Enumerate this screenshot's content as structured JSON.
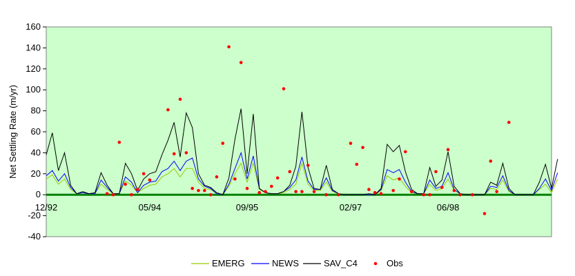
{
  "chart_data": {
    "type": "line",
    "title": "",
    "xlabel": "",
    "ylabel": "Net Settling Rate (m/yr)",
    "ylim": [
      -40,
      160
    ],
    "yticks": [
      -40,
      -20,
      0,
      20,
      40,
      60,
      80,
      100,
      120,
      140,
      160
    ],
    "xlim": [
      0,
      83
    ],
    "xticks": [
      {
        "x": 0,
        "label": "12/92"
      },
      {
        "x": 17,
        "label": "05/94"
      },
      {
        "x": 33,
        "label": "09/95"
      },
      {
        "x": 50,
        "label": "02/97"
      },
      {
        "x": 66,
        "label": "06/98"
      }
    ],
    "grid": false,
    "background": "#ccffcc",
    "zero_line_color": "#008000",
    "legend_position": "bottom",
    "series": [
      {
        "name": "EMERG",
        "style": "line",
        "color": "#99cc00",
        "values": [
          15,
          19,
          10,
          15,
          5,
          1,
          2,
          1,
          1,
          10,
          5,
          1,
          1,
          13,
          9,
          2,
          6,
          9,
          10,
          17,
          20,
          25,
          17,
          25,
          25,
          12,
          6,
          5,
          1,
          0,
          8,
          20,
          30,
          12,
          30,
          5,
          2,
          1,
          1,
          2,
          5,
          10,
          30,
          10,
          4,
          4,
          12,
          3,
          1,
          0,
          0,
          0,
          0,
          0,
          0,
          4,
          18,
          14,
          16,
          8,
          2,
          1,
          1,
          10,
          4,
          6,
          15,
          4,
          1,
          0,
          0,
          0,
          0,
          6,
          5,
          14,
          3,
          0,
          0,
          0,
          0,
          5,
          10,
          2,
          15
        ]
      },
      {
        "name": "NEWS",
        "style": "line",
        "color": "#0000ff",
        "values": [
          18,
          23,
          13,
          20,
          7,
          1,
          2,
          1,
          1,
          14,
          7,
          1,
          1,
          17,
          12,
          2,
          9,
          12,
          13,
          22,
          25,
          32,
          23,
          32,
          35,
          15,
          8,
          6,
          1,
          0,
          10,
          25,
          40,
          15,
          37,
          6,
          2,
          1,
          1,
          3,
          7,
          14,
          36,
          13,
          5,
          5,
          16,
          4,
          1,
          0,
          0,
          0,
          0,
          0,
          0,
          5,
          24,
          21,
          24,
          12,
          3,
          1,
          1,
          14,
          6,
          8,
          21,
          5,
          1,
          0,
          0,
          0,
          0,
          8,
          7,
          18,
          4,
          0,
          0,
          0,
          0,
          6,
          15,
          4,
          21
        ]
      },
      {
        "name": "SAV_C4",
        "style": "line",
        "color": "#000000",
        "values": [
          38,
          59,
          23,
          40,
          9,
          1,
          3,
          1,
          2,
          21,
          9,
          1,
          1,
          30,
          20,
          4,
          15,
          20,
          22,
          38,
          52,
          69,
          36,
          78,
          64,
          20,
          9,
          7,
          2,
          0,
          16,
          53,
          82,
          20,
          77,
          6,
          2,
          1,
          1,
          3,
          9,
          27,
          79,
          26,
          6,
          5,
          28,
          5,
          1,
          0,
          0,
          0,
          0,
          1,
          0,
          6,
          48,
          41,
          47,
          22,
          5,
          1,
          1,
          26,
          8,
          14,
          41,
          8,
          1,
          0,
          0,
          0,
          0,
          12,
          9,
          30,
          6,
          0,
          0,
          0,
          0,
          12,
          29,
          6,
          34
        ]
      },
      {
        "name": "Obs",
        "style": "scatter",
        "color": "#ff0000",
        "points": [
          [
            10,
            1
          ],
          [
            11,
            0
          ],
          [
            12,
            50
          ],
          [
            13,
            10
          ],
          [
            14,
            0
          ],
          [
            15,
            5
          ],
          [
            16,
            20
          ],
          [
            17,
            14
          ],
          [
            20,
            81
          ],
          [
            21,
            39
          ],
          [
            22,
            91
          ],
          [
            23,
            40
          ],
          [
            24,
            6
          ],
          [
            25,
            4
          ],
          [
            26,
            4
          ],
          [
            27,
            0
          ],
          [
            28,
            17
          ],
          [
            29,
            49
          ],
          [
            30,
            141
          ],
          [
            31,
            15
          ],
          [
            32,
            126
          ],
          [
            33,
            6
          ],
          [
            35,
            2
          ],
          [
            36,
            3
          ],
          [
            37,
            8
          ],
          [
            38,
            16
          ],
          [
            39,
            101
          ],
          [
            40,
            22
          ],
          [
            41,
            3
          ],
          [
            42,
            3
          ],
          [
            43,
            28
          ],
          [
            44,
            3
          ],
          [
            46,
            0
          ],
          [
            48,
            0
          ],
          [
            50,
            49
          ],
          [
            51,
            29
          ],
          [
            52,
            45
          ],
          [
            53,
            5
          ],
          [
            54,
            2
          ],
          [
            55,
            1
          ],
          [
            57,
            4
          ],
          [
            58,
            15
          ],
          [
            59,
            41
          ],
          [
            60,
            3
          ],
          [
            62,
            0
          ],
          [
            63,
            0
          ],
          [
            64,
            22
          ],
          [
            65,
            7
          ],
          [
            66,
            43
          ],
          [
            67,
            4
          ],
          [
            68,
            0
          ],
          [
            70,
            0
          ],
          [
            72,
            -18
          ],
          [
            73,
            32
          ],
          [
            74,
            3
          ],
          [
            76,
            69
          ]
        ]
      }
    ]
  }
}
